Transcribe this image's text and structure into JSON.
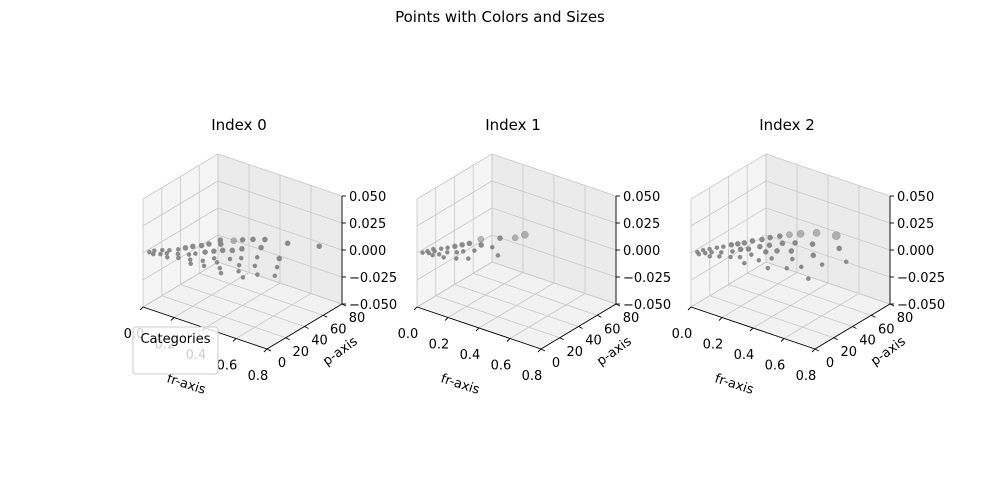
{
  "figure": {
    "suptitle": "Points with Colors and Sizes",
    "legend_title": "Categories"
  },
  "chart_data": [
    {
      "type": "scatter",
      "title": "Index 0",
      "xlabel": "fr-axis",
      "ylabel": "p-axis",
      "zlabel": "",
      "xlim": [
        0,
        0.8
      ],
      "ylim": [
        0,
        90
      ],
      "zlim": [
        -0.05,
        0.05
      ],
      "x_ticks": [
        "0.0",
        "0.2",
        "0.4",
        "0.6",
        "0.8"
      ],
      "y_ticks": [
        "0",
        "20",
        "40",
        "60",
        "80"
      ],
      "z_ticks": [
        "−0.050",
        "−0.025",
        "0.000",
        "0.025",
        "0.050"
      ],
      "color": "#808080",
      "points": [
        {
          "x": 0.02,
          "y": 4,
          "z": 0,
          "size": 3
        },
        {
          "x": 0.03,
          "y": 8,
          "z": 0,
          "size": 3
        },
        {
          "x": 0.05,
          "y": 3,
          "z": 0,
          "size": 3
        },
        {
          "x": 0.06,
          "y": 12,
          "z": 0,
          "size": 3
        },
        {
          "x": 0.08,
          "y": 6,
          "z": 0,
          "size": 3
        },
        {
          "x": 0.09,
          "y": 15,
          "z": 0,
          "size": 3
        },
        {
          "x": 0.1,
          "y": 10,
          "z": 0,
          "size": 3
        },
        {
          "x": 0.12,
          "y": 20,
          "z": 0,
          "size": 3
        },
        {
          "x": 0.13,
          "y": 5,
          "z": 0,
          "size": 3
        },
        {
          "x": 0.14,
          "y": 25,
          "z": 0,
          "size": 4
        },
        {
          "x": 0.15,
          "y": 14,
          "z": 0,
          "size": 3
        },
        {
          "x": 0.16,
          "y": 30,
          "z": 0,
          "size": 4
        },
        {
          "x": 0.18,
          "y": 9,
          "z": 0,
          "size": 3
        },
        {
          "x": 0.19,
          "y": 35,
          "z": 0,
          "size": 4
        },
        {
          "x": 0.2,
          "y": 18,
          "z": 0,
          "size": 3
        },
        {
          "x": 0.21,
          "y": 40,
          "z": 0,
          "size": 4
        },
        {
          "x": 0.22,
          "y": 22,
          "z": 0,
          "size": 3
        },
        {
          "x": 0.23,
          "y": 50,
          "z": 0,
          "size": 4
        },
        {
          "x": 0.24,
          "y": 12,
          "z": 0,
          "size": 3
        },
        {
          "x": 0.25,
          "y": 28,
          "z": 0,
          "size": 4
        },
        {
          "x": 0.26,
          "y": 45,
          "z": 0,
          "size": 4
        },
        {
          "x": 0.27,
          "y": 7,
          "z": 0,
          "size": 3
        },
        {
          "x": 0.28,
          "y": 33,
          "z": 0,
          "size": 4
        },
        {
          "x": 0.29,
          "y": 55,
          "z": 0,
          "size": 5
        },
        {
          "x": 0.3,
          "y": 16,
          "z": 0,
          "size": 3
        },
        {
          "x": 0.31,
          "y": 38,
          "z": 0,
          "size": 4
        },
        {
          "x": 0.32,
          "y": 60,
          "z": 0,
          "size": 4
        },
        {
          "x": 0.33,
          "y": 24,
          "z": 0,
          "size": 3
        },
        {
          "x": 0.34,
          "y": 10,
          "z": 0,
          "size": 3
        },
        {
          "x": 0.35,
          "y": 42,
          "z": 0,
          "size": 4
        },
        {
          "x": 0.36,
          "y": 65,
          "z": 0,
          "size": 4
        },
        {
          "x": 0.37,
          "y": 20,
          "z": 0,
          "size": 3
        },
        {
          "x": 0.38,
          "y": 48,
          "z": 0,
          "size": 4
        },
        {
          "x": 0.4,
          "y": 30,
          "z": 0,
          "size": 3
        },
        {
          "x": 0.41,
          "y": 70,
          "z": 0,
          "size": 4
        },
        {
          "x": 0.42,
          "y": 14,
          "z": 0,
          "size": 3
        },
        {
          "x": 0.44,
          "y": 36,
          "z": 0,
          "size": 3
        },
        {
          "x": 0.45,
          "y": 58,
          "z": 0,
          "size": 4
        },
        {
          "x": 0.46,
          "y": 8,
          "z": 0,
          "size": 3
        },
        {
          "x": 0.48,
          "y": 26,
          "z": 0,
          "size": 3
        },
        {
          "x": 0.5,
          "y": 44,
          "z": 0,
          "size": 3
        },
        {
          "x": 0.52,
          "y": 18,
          "z": 0,
          "size": 3
        },
        {
          "x": 0.53,
          "y": 75,
          "z": 0,
          "size": 4
        },
        {
          "x": 0.55,
          "y": 32,
          "z": 0,
          "size": 3
        },
        {
          "x": 0.58,
          "y": 12,
          "z": 0,
          "size": 3
        },
        {
          "x": 0.6,
          "y": 52,
          "z": 0,
          "size": 4
        },
        {
          "x": 0.62,
          "y": 22,
          "z": 0,
          "size": 3
        },
        {
          "x": 0.65,
          "y": 40,
          "z": 0,
          "size": 3
        },
        {
          "x": 0.68,
          "y": 85,
          "z": 0,
          "size": 4
        },
        {
          "x": 0.7,
          "y": 28,
          "z": 0,
          "size": 3
        }
      ]
    },
    {
      "type": "scatter",
      "title": "Index 1",
      "xlabel": "fr-axis",
      "ylabel": "p-axis",
      "zlabel": "",
      "xlim": [
        0,
        0.8
      ],
      "ylim": [
        0,
        90
      ],
      "zlim": [
        -0.05,
        0.05
      ],
      "x_ticks": [
        "0.0",
        "0.2",
        "0.4",
        "0.6",
        "0.8"
      ],
      "y_ticks": [
        "0",
        "20",
        "40",
        "60",
        "80"
      ],
      "z_ticks": [
        "−0.050",
        "−0.025",
        "0.000",
        "0.025",
        "0.050"
      ],
      "color": "#808080",
      "points": [
        {
          "x": 0.02,
          "y": 3,
          "z": 0,
          "size": 3
        },
        {
          "x": 0.03,
          "y": 7,
          "z": 0,
          "size": 3
        },
        {
          "x": 0.04,
          "y": 12,
          "z": 0,
          "size": 3
        },
        {
          "x": 0.05,
          "y": 5,
          "z": 0,
          "size": 3
        },
        {
          "x": 0.06,
          "y": 10,
          "z": 0,
          "size": 3
        },
        {
          "x": 0.07,
          "y": 16,
          "z": 0,
          "size": 3
        },
        {
          "x": 0.08,
          "y": 4,
          "z": 0,
          "size": 3
        },
        {
          "x": 0.09,
          "y": 20,
          "z": 0,
          "size": 3
        },
        {
          "x": 0.1,
          "y": 8,
          "z": 0,
          "size": 3
        },
        {
          "x": 0.11,
          "y": 25,
          "z": 0,
          "size": 4
        },
        {
          "x": 0.12,
          "y": 14,
          "z": 0,
          "size": 3
        },
        {
          "x": 0.13,
          "y": 30,
          "z": 0,
          "size": 4
        },
        {
          "x": 0.14,
          "y": 6,
          "z": 0,
          "size": 3
        },
        {
          "x": 0.15,
          "y": 35,
          "z": 0,
          "size": 4
        },
        {
          "x": 0.16,
          "y": 18,
          "z": 0,
          "size": 3
        },
        {
          "x": 0.17,
          "y": 45,
          "z": 0,
          "size": 5
        },
        {
          "x": 0.18,
          "y": 22,
          "z": 0,
          "size": 3
        },
        {
          "x": 0.2,
          "y": 10,
          "z": 0,
          "size": 3
        },
        {
          "x": 0.21,
          "y": 38,
          "z": 0,
          "size": 4
        },
        {
          "x": 0.22,
          "y": 28,
          "z": 0,
          "size": 3
        },
        {
          "x": 0.24,
          "y": 55,
          "z": 0,
          "size": 4
        },
        {
          "x": 0.25,
          "y": 15,
          "z": 0,
          "size": 3
        },
        {
          "x": 0.27,
          "y": 40,
          "z": 0,
          "size": 3
        },
        {
          "x": 0.3,
          "y": 62,
          "z": 0,
          "size": 5
        },
        {
          "x": 0.32,
          "y": 70,
          "z": 0,
          "size": 6
        },
        {
          "x": 0.35,
          "y": 32,
          "z": 0,
          "size": 3
        }
      ]
    },
    {
      "type": "scatter",
      "title": "Index 2",
      "xlabel": "fr-axis",
      "ylabel": "p-axis",
      "zlabel": "",
      "xlim": [
        0,
        0.8
      ],
      "ylim": [
        0,
        90
      ],
      "zlim": [
        -0.05,
        0.05
      ],
      "x_ticks": [
        "0.0",
        "0.2",
        "0.4",
        "0.6",
        "0.8"
      ],
      "y_ticks": [
        "0",
        "20",
        "40",
        "60",
        "80"
      ],
      "z_ticks": [
        "−0.050",
        "−0.025",
        "0.000",
        "0.025",
        "0.050"
      ],
      "color": "#808080",
      "points": [
        {
          "x": 0.02,
          "y": 4,
          "z": 0,
          "size": 3
        },
        {
          "x": 0.03,
          "y": 9,
          "z": 0,
          "size": 3
        },
        {
          "x": 0.04,
          "y": 2,
          "z": 0,
          "size": 3
        },
        {
          "x": 0.05,
          "y": 13,
          "z": 0,
          "size": 3
        },
        {
          "x": 0.06,
          "y": 6,
          "z": 0,
          "size": 3
        },
        {
          "x": 0.07,
          "y": 18,
          "z": 0,
          "size": 3
        },
        {
          "x": 0.08,
          "y": 10,
          "z": 0,
          "size": 3
        },
        {
          "x": 0.09,
          "y": 22,
          "z": 0,
          "size": 3
        },
        {
          "x": 0.1,
          "y": 4,
          "z": 0,
          "size": 3
        },
        {
          "x": 0.11,
          "y": 28,
          "z": 0,
          "size": 4
        },
        {
          "x": 0.12,
          "y": 14,
          "z": 0,
          "size": 3
        },
        {
          "x": 0.13,
          "y": 32,
          "z": 0,
          "size": 4
        },
        {
          "x": 0.14,
          "y": 8,
          "z": 0,
          "size": 3
        },
        {
          "x": 0.15,
          "y": 36,
          "z": 0,
          "size": 4
        },
        {
          "x": 0.16,
          "y": 20,
          "z": 0,
          "size": 3
        },
        {
          "x": 0.17,
          "y": 42,
          "z": 0,
          "size": 4
        },
        {
          "x": 0.18,
          "y": 26,
          "z": 0,
          "size": 4
        },
        {
          "x": 0.19,
          "y": 12,
          "z": 0,
          "size": 3
        },
        {
          "x": 0.2,
          "y": 48,
          "z": 0,
          "size": 4
        },
        {
          "x": 0.21,
          "y": 30,
          "z": 0,
          "size": 4
        },
        {
          "x": 0.22,
          "y": 54,
          "z": 0,
          "size": 4
        },
        {
          "x": 0.23,
          "y": 16,
          "z": 0,
          "size": 3
        },
        {
          "x": 0.24,
          "y": 38,
          "z": 0,
          "size": 4
        },
        {
          "x": 0.25,
          "y": 60,
          "z": 0,
          "size": 4
        },
        {
          "x": 0.26,
          "y": 24,
          "z": 0,
          "size": 3
        },
        {
          "x": 0.27,
          "y": 44,
          "z": 0,
          "size": 4
        },
        {
          "x": 0.28,
          "y": 66,
          "z": 0,
          "size": 5
        },
        {
          "x": 0.29,
          "y": 10,
          "z": 0,
          "size": 3
        },
        {
          "x": 0.3,
          "y": 34,
          "z": 0,
          "size": 4
        },
        {
          "x": 0.31,
          "y": 52,
          "z": 0,
          "size": 4
        },
        {
          "x": 0.32,
          "y": 72,
          "z": 0,
          "size": 6
        },
        {
          "x": 0.33,
          "y": 20,
          "z": 0,
          "size": 3
        },
        {
          "x": 0.34,
          "y": 40,
          "z": 0,
          "size": 4
        },
        {
          "x": 0.36,
          "y": 58,
          "z": 0,
          "size": 4
        },
        {
          "x": 0.37,
          "y": 28,
          "z": 0,
          "size": 3
        },
        {
          "x": 0.38,
          "y": 80,
          "z": 0,
          "size": 6
        },
        {
          "x": 0.4,
          "y": 46,
          "z": 0,
          "size": 4
        },
        {
          "x": 0.42,
          "y": 14,
          "z": 0,
          "size": 3
        },
        {
          "x": 0.44,
          "y": 64,
          "z": 0,
          "size": 4
        },
        {
          "x": 0.46,
          "y": 36,
          "z": 0,
          "size": 3
        },
        {
          "x": 0.48,
          "y": 85,
          "z": 0,
          "size": 7
        },
        {
          "x": 0.5,
          "y": 22,
          "z": 0,
          "size": 3
        },
        {
          "x": 0.52,
          "y": 50,
          "z": 0,
          "size": 4
        },
        {
          "x": 0.55,
          "y": 30,
          "z": 0,
          "size": 3
        },
        {
          "x": 0.58,
          "y": 70,
          "z": 0,
          "size": 4
        },
        {
          "x": 0.62,
          "y": 42,
          "z": 0,
          "size": 3
        },
        {
          "x": 0.66,
          "y": 18,
          "z": 0,
          "size": 3
        },
        {
          "x": 0.7,
          "y": 56,
          "z": 0,
          "size": 3
        }
      ]
    }
  ]
}
